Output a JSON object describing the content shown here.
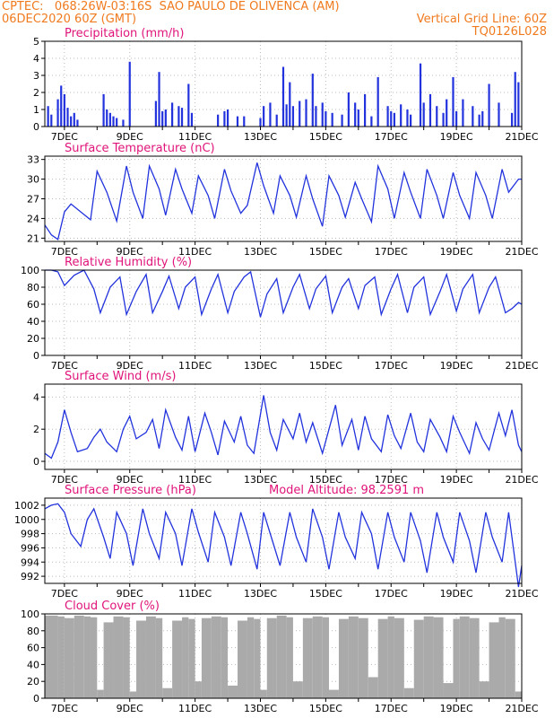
{
  "header": {
    "line1": "CPTEC:   068:26W-03:16S  SAO PAULO DE OLIVENCA (AM)",
    "line2": "06DEC2020 60Z (GMT)",
    "grid_note": "Vertical Grid Line: 60Z",
    "code": "TQ0126L028"
  },
  "colors": {
    "header": "#f07a1e",
    "title": "#e0147a",
    "series": "#2233dd",
    "cloud": "#aaaaaa"
  },
  "chart_data": [
    {
      "type": "bar",
      "title": "Precipitation (mm/h)",
      "x_ticks": [
        "7DEC",
        "9DEC",
        "11DEC",
        "13DEC",
        "15DEC",
        "17DEC",
        "19DEC",
        "21DEC"
      ],
      "y_ticks": [
        0,
        1,
        2,
        3,
        4,
        5
      ],
      "ylim": [
        0,
        5
      ],
      "xlim": [
        6.4,
        21.0
      ],
      "grid": "dotted",
      "x": [
        6.5,
        6.6,
        6.8,
        6.9,
        7.0,
        7.1,
        7.2,
        7.3,
        7.4,
        8.2,
        8.3,
        8.4,
        8.5,
        8.6,
        8.8,
        9.0,
        9.8,
        9.9,
        10.0,
        10.1,
        10.3,
        10.5,
        10.6,
        10.8,
        10.9,
        11.7,
        11.9,
        12.0,
        12.3,
        12.5,
        13.0,
        13.1,
        13.3,
        13.5,
        13.7,
        13.8,
        13.9,
        14.0,
        14.2,
        14.4,
        14.6,
        14.7,
        14.9,
        15.0,
        15.2,
        15.5,
        15.7,
        15.9,
        16.0,
        16.2,
        16.4,
        16.6,
        16.9,
        17.0,
        17.1,
        17.3,
        17.5,
        17.6,
        17.9,
        18.0,
        18.2,
        18.4,
        18.6,
        18.7,
        18.9,
        19.0,
        19.2,
        19.5,
        19.7,
        19.8,
        20.0,
        20.3,
        20.7,
        20.8,
        20.9
      ],
      "values": [
        1.2,
        0.7,
        1.6,
        2.4,
        1.9,
        1.1,
        0.6,
        0.8,
        0.4,
        1.9,
        1.0,
        0.8,
        0.6,
        0.5,
        0.4,
        3.8,
        1.5,
        3.2,
        0.9,
        1.0,
        1.4,
        1.2,
        1.1,
        2.5,
        0.8,
        0.7,
        0.9,
        1.0,
        0.6,
        0.6,
        0.5,
        1.2,
        1.4,
        0.7,
        3.5,
        1.3,
        2.6,
        1.2,
        1.5,
        1.6,
        3.1,
        1.2,
        1.4,
        0.9,
        0.8,
        0.7,
        2.0,
        1.4,
        1.0,
        1.9,
        0.6,
        2.9,
        1.2,
        0.9,
        0.8,
        1.3,
        1.0,
        0.7,
        3.7,
        1.4,
        1.9,
        1.2,
        0.8,
        1.6,
        2.9,
        0.9,
        1.6,
        1.2,
        0.7,
        0.9,
        2.5,
        1.4,
        0.8,
        3.2,
        2.6
      ]
    },
    {
      "type": "line",
      "title": "Surface Temperature (nC)",
      "x_ticks": [
        "7DEC",
        "9DEC",
        "11DEC",
        "13DEC",
        "15DEC",
        "17DEC",
        "19DEC",
        "21DEC"
      ],
      "y_ticks": [
        21,
        24,
        27,
        30,
        33
      ],
      "ylim": [
        20.5,
        33.5
      ],
      "xlim": [
        6.4,
        21.0
      ],
      "grid": "dotted",
      "x": [
        6.4,
        6.6,
        6.8,
        7.0,
        7.2,
        7.5,
        7.8,
        8.0,
        8.3,
        8.6,
        8.9,
        9.1,
        9.4,
        9.6,
        9.9,
        10.1,
        10.4,
        10.6,
        10.9,
        11.1,
        11.4,
        11.6,
        11.9,
        12.1,
        12.4,
        12.6,
        12.9,
        13.1,
        13.4,
        13.6,
        13.9,
        14.1,
        14.4,
        14.6,
        14.9,
        15.1,
        15.4,
        15.6,
        15.9,
        16.1,
        16.4,
        16.6,
        16.9,
        17.1,
        17.4,
        17.6,
        17.9,
        18.1,
        18.4,
        18.6,
        18.9,
        19.1,
        19.4,
        19.6,
        19.9,
        20.1,
        20.4,
        20.6,
        20.9,
        21.0
      ],
      "values": [
        23.0,
        21.5,
        20.8,
        25.0,
        26.2,
        25.0,
        23.8,
        31.2,
        28.0,
        23.6,
        32.0,
        28.0,
        24.0,
        32.0,
        28.5,
        24.5,
        31.5,
        28.5,
        24.8,
        30.5,
        27.5,
        24.0,
        31.5,
        28.2,
        24.8,
        26.0,
        32.5,
        29.0,
        24.8,
        30.5,
        27.5,
        24.2,
        30.5,
        27.0,
        22.8,
        30.5,
        27.5,
        24.2,
        29.5,
        27.0,
        23.5,
        32.0,
        28.5,
        24.0,
        31.0,
        28.0,
        24.0,
        31.5,
        27.5,
        24.0,
        31.0,
        27.5,
        24.0,
        31.0,
        27.5,
        24.0,
        31.5,
        28.0,
        30.0,
        30.0
      ]
    },
    {
      "type": "line",
      "title": "Relative Humidity (%)",
      "x_ticks": [
        "7DEC",
        "9DEC",
        "11DEC",
        "13DEC",
        "15DEC",
        "17DEC",
        "19DEC",
        "21DEC"
      ],
      "y_ticks": [
        0,
        20,
        40,
        60,
        80,
        100
      ],
      "ylim": [
        0,
        100
      ],
      "xlim": [
        6.4,
        21.0
      ],
      "grid": "dotted",
      "x": [
        6.4,
        6.6,
        6.8,
        7.0,
        7.3,
        7.6,
        7.9,
        8.1,
        8.4,
        8.7,
        8.9,
        9.2,
        9.5,
        9.7,
        10.0,
        10.2,
        10.5,
        10.7,
        11.0,
        11.2,
        11.5,
        11.7,
        12.0,
        12.2,
        12.5,
        12.7,
        13.0,
        13.2,
        13.5,
        13.7,
        14.0,
        14.2,
        14.5,
        14.7,
        15.0,
        15.2,
        15.5,
        15.7,
        16.0,
        16.2,
        16.5,
        16.7,
        17.0,
        17.2,
        17.5,
        17.7,
        18.0,
        18.2,
        18.5,
        18.7,
        19.0,
        19.2,
        19.5,
        19.7,
        20.0,
        20.2,
        20.5,
        20.7,
        20.9,
        21.0
      ],
      "values": [
        100,
        100,
        98,
        82,
        94,
        100,
        78,
        50,
        80,
        92,
        48,
        75,
        95,
        50,
        75,
        93,
        55,
        80,
        92,
        48,
        78,
        95,
        50,
        75,
        92,
        98,
        45,
        72,
        90,
        50,
        80,
        95,
        55,
        78,
        93,
        50,
        80,
        90,
        55,
        82,
        92,
        48,
        78,
        95,
        50,
        80,
        92,
        48,
        75,
        95,
        52,
        78,
        95,
        50,
        80,
        92,
        50,
        55,
        62,
        60
      ]
    },
    {
      "type": "line",
      "title": "Surface Wind (m/s)",
      "x_ticks": [
        "7DEC",
        "9DEC",
        "11DEC",
        "13DEC",
        "15DEC",
        "17DEC",
        "19DEC",
        "21DEC"
      ],
      "y_ticks": [
        0,
        2,
        4
      ],
      "ylim": [
        -0.5,
        4.8
      ],
      "xlim": [
        6.4,
        21.0
      ],
      "grid": "dotted",
      "x": [
        6.4,
        6.6,
        6.8,
        7.0,
        7.2,
        7.4,
        7.7,
        7.9,
        8.1,
        8.3,
        8.6,
        8.8,
        9.0,
        9.2,
        9.5,
        9.7,
        9.9,
        10.1,
        10.4,
        10.6,
        10.8,
        11.0,
        11.3,
        11.5,
        11.7,
        11.9,
        12.2,
        12.4,
        12.6,
        12.8,
        13.1,
        13.3,
        13.5,
        13.7,
        14.0,
        14.2,
        14.4,
        14.6,
        14.9,
        15.1,
        15.3,
        15.5,
        15.8,
        16.0,
        16.2,
        16.4,
        16.7,
        16.9,
        17.1,
        17.3,
        17.6,
        17.8,
        18.0,
        18.2,
        18.5,
        18.7,
        18.9,
        19.1,
        19.4,
        19.6,
        19.8,
        20.0,
        20.3,
        20.5,
        20.7,
        20.9,
        21.0
      ],
      "values": [
        0.5,
        0.2,
        1.2,
        3.2,
        1.8,
        0.6,
        0.8,
        1.5,
        2.0,
        1.2,
        0.6,
        2.0,
        2.8,
        1.4,
        1.8,
        2.6,
        0.8,
        3.2,
        1.5,
        0.7,
        2.8,
        0.6,
        3.0,
        1.8,
        0.4,
        2.5,
        1.2,
        2.8,
        1.0,
        0.5,
        4.1,
        1.8,
        0.7,
        2.6,
        1.4,
        3.0,
        1.2,
        2.4,
        0.5,
        2.0,
        3.5,
        1.0,
        2.6,
        0.7,
        2.8,
        1.4,
        0.6,
        2.9,
        1.6,
        0.8,
        3.0,
        1.2,
        0.6,
        2.6,
        1.5,
        0.6,
        2.8,
        1.8,
        0.5,
        2.4,
        1.4,
        0.7,
        3.0,
        1.6,
        3.2,
        1.0,
        0.6
      ]
    },
    {
      "type": "line",
      "title": "Surface Pressure (hPa)",
      "annotation": "Model Altitude: 98.2591  m",
      "x_ticks": [
        "7DEC",
        "9DEC",
        "11DEC",
        "13DEC",
        "15DEC",
        "17DEC",
        "19DEC",
        "21DEC"
      ],
      "y_ticks": [
        992,
        994,
        996,
        998,
        1000,
        1002
      ],
      "ylim": [
        991,
        1003
      ],
      "xlim": [
        6.4,
        21.0
      ],
      "grid": "dotted",
      "x": [
        6.4,
        6.6,
        6.8,
        7.0,
        7.2,
        7.5,
        7.7,
        7.9,
        8.2,
        8.4,
        8.6,
        8.9,
        9.1,
        9.4,
        9.6,
        9.9,
        10.1,
        10.4,
        10.6,
        10.9,
        11.1,
        11.4,
        11.6,
        11.9,
        12.1,
        12.4,
        12.6,
        12.9,
        13.1,
        13.4,
        13.6,
        13.9,
        14.1,
        14.4,
        14.6,
        14.9,
        15.1,
        15.4,
        15.6,
        15.9,
        16.1,
        16.4,
        16.6,
        16.9,
        17.1,
        17.4,
        17.6,
        17.9,
        18.1,
        18.4,
        18.6,
        18.9,
        19.1,
        19.4,
        19.6,
        19.9,
        20.1,
        20.4,
        20.6,
        20.9,
        21.0
      ],
      "values": [
        1001.5,
        1002.0,
        1002.2,
        1001.0,
        998.0,
        996.2,
        1000.0,
        1001.5,
        997.5,
        994.5,
        1001.0,
        998.0,
        993.5,
        1001.5,
        998.0,
        994.5,
        1001.0,
        998.0,
        993.5,
        1001.5,
        998.2,
        994.0,
        1001.0,
        997.5,
        993.5,
        1001.0,
        998.0,
        993.0,
        1001.0,
        996.5,
        993.5,
        1001.0,
        997.5,
        994.0,
        1001.5,
        997.5,
        993.0,
        1001.0,
        997.5,
        994.5,
        1001.0,
        998.0,
        993.0,
        1001.0,
        997.5,
        994.0,
        1001.0,
        997.0,
        992.5,
        1001.0,
        997.5,
        994.0,
        1001.0,
        997.0,
        992.5,
        1001.0,
        997.5,
        994.0,
        1001.0,
        990.5,
        993.5
      ]
    },
    {
      "type": "area",
      "title": "Cloud Cover (%)",
      "x_ticks": [
        "7DEC",
        "9DEC",
        "11DEC",
        "13DEC",
        "15DEC",
        "17DEC",
        "19DEC",
        "21DEC"
      ],
      "y_ticks": [
        0,
        20,
        40,
        60,
        80,
        100
      ],
      "ylim": [
        0,
        100
      ],
      "xlim": [
        6.4,
        21.0
      ],
      "grid": "dotted",
      "x": [
        6.4,
        6.8,
        7.0,
        7.3,
        7.6,
        7.8,
        8.0,
        8.2,
        8.5,
        8.8,
        9.0,
        9.2,
        9.5,
        9.8,
        10.0,
        10.3,
        10.6,
        10.8,
        11.0,
        11.2,
        11.5,
        11.8,
        12.0,
        12.3,
        12.6,
        12.8,
        13.0,
        13.2,
        13.5,
        13.8,
        14.0,
        14.3,
        14.6,
        14.9,
        15.1,
        15.4,
        15.7,
        16.0,
        16.3,
        16.6,
        16.9,
        17.1,
        17.4,
        17.7,
        18.0,
        18.3,
        18.6,
        18.9,
        19.1,
        19.4,
        19.7,
        20.0,
        20.3,
        20.5,
        20.8,
        21.0
      ],
      "values": [
        98,
        97,
        95,
        98,
        97,
        96,
        10,
        90,
        97,
        96,
        8,
        92,
        97,
        95,
        12,
        92,
        96,
        94,
        20,
        95,
        97,
        96,
        15,
        92,
        96,
        94,
        10,
        95,
        98,
        96,
        20,
        95,
        97,
        96,
        10,
        94,
        97,
        95,
        25,
        94,
        97,
        95,
        12,
        93,
        97,
        96,
        18,
        94,
        97,
        95,
        20,
        90,
        96,
        94,
        8,
        5
      ]
    }
  ]
}
